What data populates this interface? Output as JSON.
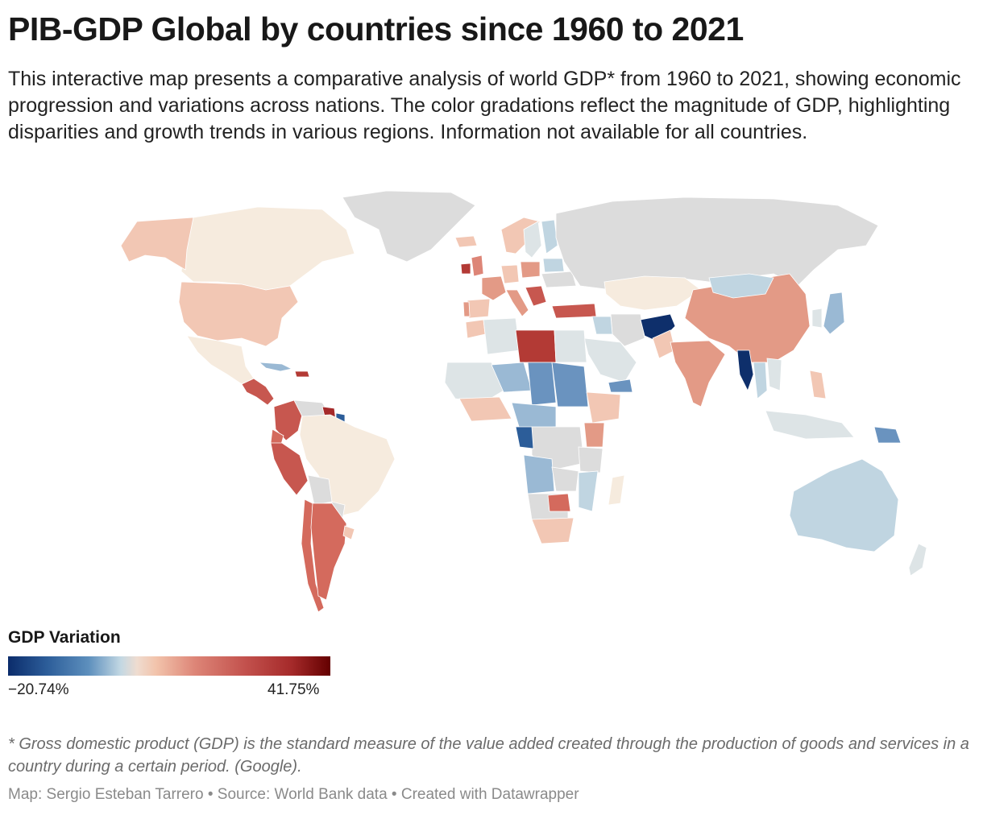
{
  "title": "PIB-GDP Global by countries since 1960 to 2021",
  "description": "This interactive map presents a comparative analysis of world GDP* from 1960 to 2021, showing economic progression and variations across nations. The color gradations reflect the magnitude of GDP, highlighting disparities and growth trends in various regions. Information not available for all countries.",
  "legend": {
    "title": "GDP Variation",
    "min_label": "−20.74%",
    "max_label": "41.75%",
    "colors": [
      "#0b2c6b",
      "#2c5d99",
      "#5d8fbd",
      "#c3d8e3",
      "#efdcd0",
      "#f2c3ab",
      "#dd8577",
      "#c2504c",
      "#a52a2a",
      "#640000"
    ]
  },
  "footnote": "* Gross domestic product (GDP) is the standard measure of the value added created through the production of goods and services in a country during a certain period. (Google).",
  "byline": "Map: Sergio Esteban Tarrero • Source: World Bank data • Created with Datawrapper",
  "colors": {
    "no_data": "#dcdcdc",
    "very_light": "#f6ebde",
    "light_red": "#f2c7b4",
    "mid_red": "#e39a86",
    "red": "#d46a5d",
    "dark_red": "#b33a35",
    "light_blue": "#c0d5e1",
    "mid_blue": "#9ab9d4",
    "blue": "#6a93bf",
    "dark_blue": "#0e2f6b",
    "pale_grey_blue": "#dde4e6"
  }
}
